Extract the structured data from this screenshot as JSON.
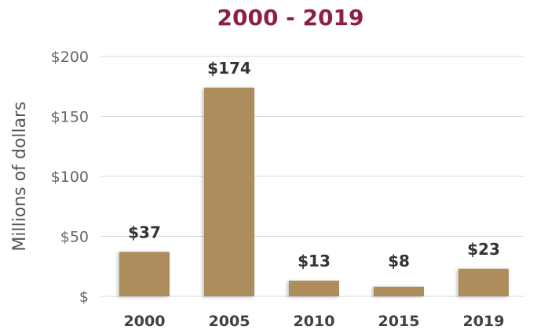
{
  "chart_data": {
    "type": "bar",
    "title": "2000 - 2019",
    "ylabel": "Millions of dollars",
    "xlabel": "",
    "categories": [
      "2000",
      "2005",
      "2010",
      "2015",
      "2019"
    ],
    "values": [
      37,
      174,
      13,
      8,
      23
    ],
    "data_labels": [
      "$37",
      "$174",
      "$13",
      "$8",
      "$23"
    ],
    "ylim": [
      0,
      200
    ],
    "yticks": [
      0,
      50,
      100,
      150,
      200
    ],
    "ytick_labels": [
      "$",
      "$50",
      "$100",
      "$150",
      "$200"
    ],
    "grid": true,
    "legend": "none",
    "colors": {
      "bar": "#ad8d5c",
      "title": "#8c1f42",
      "grid": "#d9d9d9"
    }
  }
}
